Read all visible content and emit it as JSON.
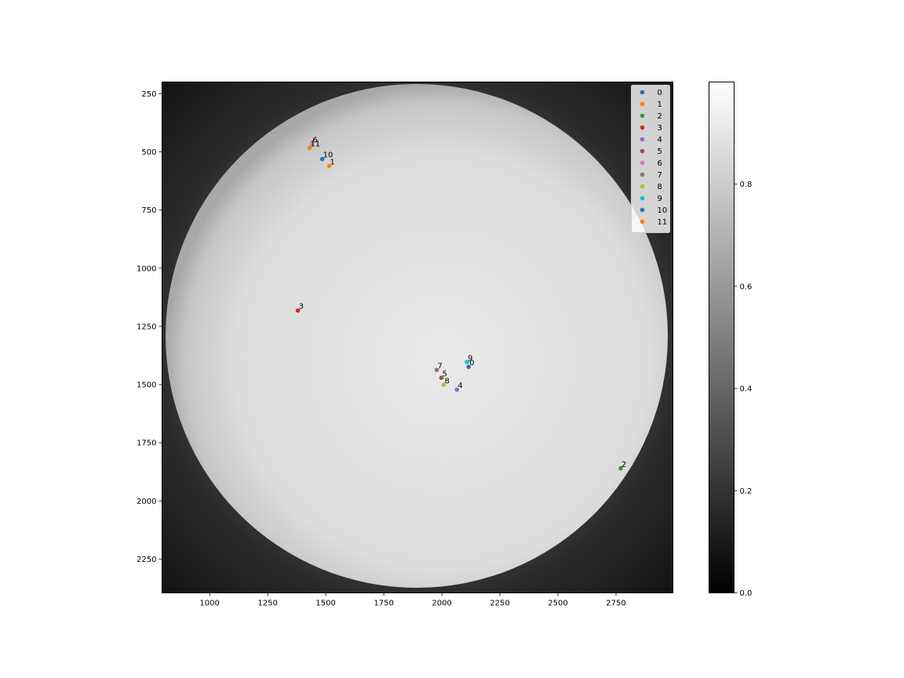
{
  "chart_data": {
    "type": "scatter",
    "background_image": "full-disk grayscale solar image",
    "colormap": "gray",
    "xlim": [
      795,
      2995
    ],
    "ylim": [
      2395,
      200
    ],
    "y_inverted": true,
    "x_ticks": [
      1000,
      1250,
      1500,
      1750,
      2000,
      2250,
      2500,
      2750
    ],
    "y_ticks": [
      250,
      500,
      750,
      1000,
      1250,
      1500,
      1750,
      2000,
      2250
    ],
    "series": [
      {
        "name": "0",
        "color": "#1f77b4",
        "x": 2115,
        "y": 1424
      },
      {
        "name": "1",
        "color": "#ff7f0e",
        "x": 1515,
        "y": 561
      },
      {
        "name": "2",
        "color": "#2ca02c",
        "x": 2770,
        "y": 1860
      },
      {
        "name": "3",
        "color": "#d62728",
        "x": 1380,
        "y": 1182
      },
      {
        "name": "4",
        "color": "#9467bd",
        "x": 2065,
        "y": 1522
      },
      {
        "name": "5",
        "color": "#8c564b",
        "x": 1998,
        "y": 1471
      },
      {
        "name": "6",
        "color": "#e377c2",
        "x": 1440,
        "y": 466
      },
      {
        "name": "7",
        "color": "#7f7f7f",
        "x": 1978,
        "y": 1437
      },
      {
        "name": "8",
        "color": "#bcbd22",
        "x": 2008,
        "y": 1501
      },
      {
        "name": "9",
        "color": "#17becf",
        "x": 2108,
        "y": 1403
      },
      {
        "name": "10",
        "color": "#1f77b4",
        "x": 1485,
        "y": 531
      },
      {
        "name": "11",
        "color": "#ff7f0e",
        "x": 1430,
        "y": 483
      }
    ],
    "legend_position": "top-right",
    "grid": false,
    "colorbar": {
      "range": [
        0.0,
        1.0
      ],
      "ticks": [
        "0.0",
        "0.2",
        "0.4",
        "0.6",
        "0.8"
      ],
      "tick_values": [
        0.0,
        0.2,
        0.4,
        0.6,
        0.8
      ]
    }
  }
}
